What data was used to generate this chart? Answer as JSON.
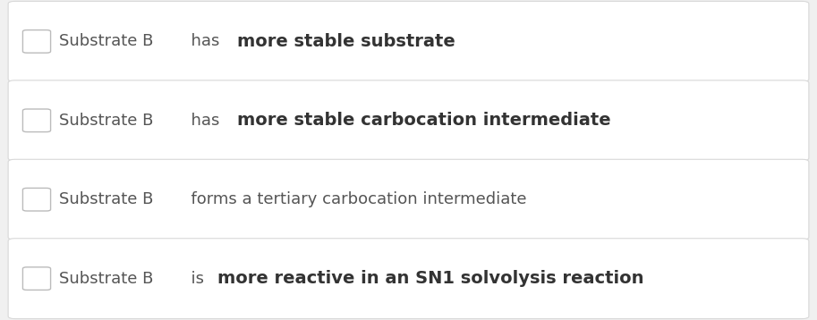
{
  "background_color": "#f0f0f0",
  "row_bg_color": "#ffffff",
  "row_border_color": "#d8d8d8",
  "rows": [
    {
      "parts": [
        {
          "text": "Substrate B",
          "weight": "normal",
          "color": "#555555",
          "size": 13
        },
        {
          "text": "  has ",
          "weight": "normal",
          "color": "#555555",
          "size": 13
        },
        {
          "text": "more stable substrate",
          "weight": "bold",
          "color": "#333333",
          "size": 14
        }
      ]
    },
    {
      "parts": [
        {
          "text": "Substrate B",
          "weight": "normal",
          "color": "#555555",
          "size": 13
        },
        {
          "text": "  has ",
          "weight": "normal",
          "color": "#555555",
          "size": 13
        },
        {
          "text": "more stable carbocation intermediate",
          "weight": "bold",
          "color": "#333333",
          "size": 14
        }
      ]
    },
    {
      "parts": [
        {
          "text": "Substrate B",
          "weight": "normal",
          "color": "#555555",
          "size": 13
        },
        {
          "text": "  forms a tertiary carbocation intermediate",
          "weight": "normal",
          "color": "#555555",
          "size": 13
        }
      ]
    },
    {
      "parts": [
        {
          "text": "Substrate B",
          "weight": "normal",
          "color": "#555555",
          "size": 13
        },
        {
          "text": "  is ",
          "weight": "normal",
          "color": "#555555",
          "size": 13
        },
        {
          "text": "more reactive in an SN1 solvolysis reaction",
          "weight": "bold",
          "color": "#333333",
          "size": 14
        }
      ]
    }
  ],
  "figsize": [
    9.13,
    3.58
  ],
  "dpi": 100
}
